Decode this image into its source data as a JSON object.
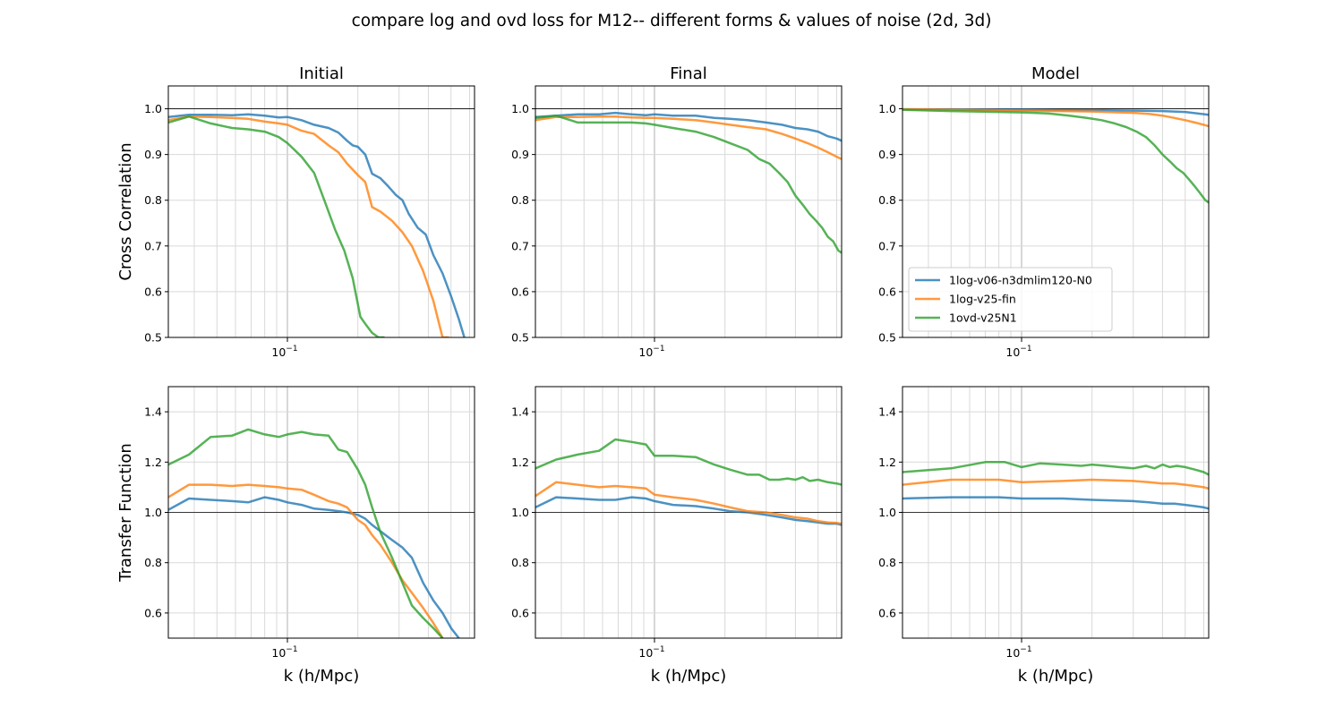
{
  "title": "compare log and ovd loss for M12-- different forms & values of noise (2d, 3d)",
  "colors": {
    "1log-v06-n3dmlim120-N0": "#1f77b4",
    "1log-v25-fin": "#ff7f0e",
    "1ovd-v25N1": "#2ca02c",
    "grid_major": "#b0b0b0",
    "grid_minor": "#d9d9d9",
    "refline": "#000000"
  },
  "chart_data": [
    {
      "type": "line",
      "panel": "Initial",
      "row": 0,
      "col": 0,
      "title": "Initial",
      "xlabel": "",
      "ylabel": "Cross Correlation",
      "xscale": "log",
      "xlim": [
        0.031,
        0.63
      ],
      "ylim": [
        0.5,
        1.05
      ],
      "yticks": [
        "0.5",
        "0.6",
        "0.7",
        "0.8",
        "0.9",
        "1.0"
      ],
      "xtick_label": "10^-1",
      "refline": 1.0,
      "series": [
        {
          "name": "1log-v06-n3dmlim120-N0",
          "x": [
            0.031,
            0.038,
            0.047,
            0.058,
            0.068,
            0.08,
            0.092,
            0.1,
            0.115,
            0.13,
            0.15,
            0.165,
            0.18,
            0.19,
            0.2,
            0.215,
            0.23,
            0.25,
            0.27,
            0.29,
            0.31,
            0.33,
            0.36,
            0.39,
            0.42,
            0.46,
            0.5,
            0.54,
            0.57
          ],
          "y": [
            0.982,
            0.987,
            0.987,
            0.986,
            0.988,
            0.985,
            0.981,
            0.982,
            0.975,
            0.965,
            0.958,
            0.948,
            0.93,
            0.92,
            0.917,
            0.9,
            0.858,
            0.848,
            0.83,
            0.812,
            0.8,
            0.77,
            0.74,
            0.725,
            0.68,
            0.64,
            0.59,
            0.54,
            0.5
          ]
        },
        {
          "name": "1log-v25-fin",
          "x": [
            0.031,
            0.038,
            0.047,
            0.058,
            0.068,
            0.08,
            0.092,
            0.1,
            0.115,
            0.13,
            0.15,
            0.165,
            0.18,
            0.2,
            0.215,
            0.23,
            0.25,
            0.28,
            0.31,
            0.34,
            0.38,
            0.42,
            0.46,
            0.49
          ],
          "y": [
            0.975,
            0.983,
            0.982,
            0.98,
            0.978,
            0.972,
            0.968,
            0.965,
            0.952,
            0.945,
            0.92,
            0.905,
            0.88,
            0.855,
            0.84,
            0.785,
            0.775,
            0.755,
            0.73,
            0.7,
            0.645,
            0.58,
            0.5,
            0.5
          ]
        },
        {
          "name": "1ovd-v25N1",
          "x": [
            0.031,
            0.038,
            0.047,
            0.058,
            0.068,
            0.08,
            0.092,
            0.1,
            0.115,
            0.13,
            0.145,
            0.16,
            0.175,
            0.19,
            0.205,
            0.215,
            0.23,
            0.245,
            0.26
          ],
          "y": [
            0.97,
            0.983,
            0.968,
            0.958,
            0.955,
            0.95,
            0.938,
            0.925,
            0.895,
            0.86,
            0.795,
            0.735,
            0.69,
            0.63,
            0.545,
            0.53,
            0.51,
            0.5,
            0.5
          ]
        }
      ]
    },
    {
      "type": "line",
      "panel": "Final",
      "row": 0,
      "col": 1,
      "title": "Final",
      "xlabel": "",
      "ylabel": "",
      "xscale": "log",
      "xlim": [
        0.031,
        0.63
      ],
      "ylim": [
        0.5,
        1.05
      ],
      "yticks": [
        "0.5",
        "0.6",
        "0.7",
        "0.8",
        "0.9",
        "1.0"
      ],
      "xtick_label": "10^-1",
      "refline": 1.0,
      "series": [
        {
          "name": "1log-v06-n3dmlim120-N0",
          "x": [
            0.031,
            0.038,
            0.047,
            0.058,
            0.068,
            0.08,
            0.092,
            0.1,
            0.12,
            0.15,
            0.18,
            0.21,
            0.25,
            0.3,
            0.35,
            0.4,
            0.45,
            0.5,
            0.55,
            0.6,
            0.63
          ],
          "y": [
            0.982,
            0.985,
            0.988,
            0.988,
            0.991,
            0.988,
            0.986,
            0.988,
            0.985,
            0.985,
            0.98,
            0.978,
            0.975,
            0.97,
            0.965,
            0.958,
            0.955,
            0.95,
            0.94,
            0.935,
            0.93
          ]
        },
        {
          "name": "1log-v25-fin",
          "x": [
            0.031,
            0.038,
            0.047,
            0.058,
            0.068,
            0.08,
            0.092,
            0.1,
            0.12,
            0.15,
            0.18,
            0.21,
            0.25,
            0.3,
            0.35,
            0.4,
            0.45,
            0.5,
            0.55,
            0.6,
            0.63
          ],
          "y": [
            0.975,
            0.982,
            0.982,
            0.983,
            0.983,
            0.981,
            0.98,
            0.98,
            0.978,
            0.975,
            0.97,
            0.965,
            0.96,
            0.955,
            0.945,
            0.935,
            0.925,
            0.915,
            0.905,
            0.895,
            0.89
          ]
        },
        {
          "name": "1ovd-v25N1",
          "x": [
            0.031,
            0.038,
            0.047,
            0.058,
            0.068,
            0.08,
            0.092,
            0.1,
            0.12,
            0.15,
            0.18,
            0.21,
            0.25,
            0.28,
            0.31,
            0.34,
            0.37,
            0.4,
            0.43,
            0.46,
            0.49,
            0.52,
            0.55,
            0.58,
            0.61,
            0.63
          ],
          "y": [
            0.98,
            0.985,
            0.97,
            0.97,
            0.97,
            0.97,
            0.968,
            0.965,
            0.958,
            0.95,
            0.938,
            0.925,
            0.91,
            0.89,
            0.88,
            0.86,
            0.84,
            0.81,
            0.79,
            0.77,
            0.755,
            0.74,
            0.72,
            0.71,
            0.69,
            0.685
          ]
        }
      ]
    },
    {
      "type": "line",
      "panel": "Model",
      "row": 0,
      "col": 2,
      "title": "Model",
      "xlabel": "",
      "ylabel": "",
      "xscale": "log",
      "xlim": [
        0.031,
        0.63
      ],
      "ylim": [
        0.5,
        1.05
      ],
      "yticks": [
        "0.5",
        "0.6",
        "0.7",
        "0.8",
        "0.9",
        "1.0"
      ],
      "xtick_label": "10^-1",
      "refline": 1.0,
      "legend": {
        "placement": "lower-left",
        "entries": [
          "1log-v06-n3dmlim120-N0",
          "1log-v25-fin",
          "1ovd-v25N1"
        ]
      },
      "series": [
        {
          "name": "1log-v06-n3dmlim120-N0",
          "x": [
            0.031,
            0.05,
            0.08,
            0.1,
            0.15,
            0.2,
            0.3,
            0.4,
            0.5,
            0.63
          ],
          "y": [
            0.999,
            0.999,
            0.998,
            0.998,
            0.997,
            0.997,
            0.996,
            0.995,
            0.993,
            0.987
          ]
        },
        {
          "name": "1log-v25-fin",
          "x": [
            0.031,
            0.05,
            0.08,
            0.1,
            0.15,
            0.2,
            0.3,
            0.35,
            0.4,
            0.45,
            0.5,
            0.55,
            0.6,
            0.63
          ],
          "y": [
            0.999,
            0.998,
            0.997,
            0.996,
            0.995,
            0.994,
            0.991,
            0.989,
            0.985,
            0.98,
            0.975,
            0.97,
            0.965,
            0.962
          ]
        },
        {
          "name": "1ovd-v25N1",
          "x": [
            0.031,
            0.05,
            0.08,
            0.1,
            0.13,
            0.16,
            0.19,
            0.22,
            0.25,
            0.28,
            0.31,
            0.34,
            0.37,
            0.4,
            0.43,
            0.46,
            0.49,
            0.52,
            0.55,
            0.58,
            0.61,
            0.63
          ],
          "y": [
            0.998,
            0.995,
            0.993,
            0.992,
            0.99,
            0.985,
            0.98,
            0.975,
            0.968,
            0.96,
            0.95,
            0.938,
            0.92,
            0.9,
            0.885,
            0.87,
            0.86,
            0.845,
            0.83,
            0.815,
            0.8,
            0.795
          ]
        }
      ]
    },
    {
      "type": "line",
      "panel": "Initial",
      "row": 1,
      "col": 0,
      "title": "",
      "xlabel": "k (h/Mpc)",
      "ylabel": "Transfer Function",
      "xscale": "log",
      "xlim": [
        0.031,
        0.63
      ],
      "ylim": [
        0.5,
        1.5
      ],
      "yticks": [
        "0.6",
        "0.8",
        "1.0",
        "1.2",
        "1.4"
      ],
      "xtick_label": "10^-1",
      "refline": 1.0,
      "series": [
        {
          "name": "1log-v06-n3dmlim120-N0",
          "x": [
            0.031,
            0.038,
            0.047,
            0.058,
            0.068,
            0.08,
            0.092,
            0.1,
            0.115,
            0.13,
            0.15,
            0.165,
            0.18,
            0.2,
            0.215,
            0.23,
            0.25,
            0.28,
            0.31,
            0.34,
            0.38,
            0.42,
            0.46,
            0.5,
            0.54
          ],
          "y": [
            1.01,
            1.055,
            1.05,
            1.045,
            1.04,
            1.06,
            1.05,
            1.04,
            1.03,
            1.015,
            1.01,
            1.005,
            1.0,
            0.99,
            0.975,
            0.95,
            0.925,
            0.89,
            0.86,
            0.82,
            0.72,
            0.65,
            0.6,
            0.54,
            0.5
          ]
        },
        {
          "name": "1log-v25-fin",
          "x": [
            0.031,
            0.038,
            0.047,
            0.058,
            0.068,
            0.08,
            0.092,
            0.1,
            0.115,
            0.13,
            0.15,
            0.165,
            0.18,
            0.2,
            0.215,
            0.23,
            0.25,
            0.28,
            0.31,
            0.34,
            0.38,
            0.42,
            0.46
          ],
          "y": [
            1.06,
            1.11,
            1.11,
            1.105,
            1.11,
            1.105,
            1.1,
            1.095,
            1.09,
            1.07,
            1.045,
            1.035,
            1.02,
            0.97,
            0.95,
            0.91,
            0.87,
            0.8,
            0.73,
            0.68,
            0.62,
            0.56,
            0.5
          ]
        },
        {
          "name": "1ovd-v25N1",
          "x": [
            0.031,
            0.038,
            0.047,
            0.058,
            0.068,
            0.08,
            0.092,
            0.1,
            0.115,
            0.13,
            0.15,
            0.165,
            0.18,
            0.2,
            0.215,
            0.23,
            0.25,
            0.28,
            0.31,
            0.34,
            0.38,
            0.42,
            0.46
          ],
          "y": [
            1.19,
            1.23,
            1.3,
            1.305,
            1.33,
            1.31,
            1.3,
            1.31,
            1.32,
            1.31,
            1.305,
            1.25,
            1.24,
            1.17,
            1.11,
            1.02,
            0.92,
            0.82,
            0.72,
            0.63,
            0.58,
            0.54,
            0.5
          ]
        }
      ]
    },
    {
      "type": "line",
      "panel": "Final",
      "row": 1,
      "col": 1,
      "title": "",
      "xlabel": "k (h/Mpc)",
      "ylabel": "",
      "xscale": "log",
      "xlim": [
        0.031,
        0.63
      ],
      "ylim": [
        0.5,
        1.5
      ],
      "yticks": [
        "0.6",
        "0.8",
        "1.0",
        "1.2",
        "1.4"
      ],
      "xtick_label": "10^-1",
      "refline": 1.0,
      "series": [
        {
          "name": "1log-v06-n3dmlim120-N0",
          "x": [
            0.031,
            0.038,
            0.047,
            0.058,
            0.068,
            0.08,
            0.092,
            0.1,
            0.12,
            0.15,
            0.18,
            0.21,
            0.25,
            0.3,
            0.35,
            0.4,
            0.45,
            0.5,
            0.55,
            0.6,
            0.63
          ],
          "y": [
            1.02,
            1.06,
            1.055,
            1.05,
            1.05,
            1.06,
            1.055,
            1.045,
            1.03,
            1.025,
            1.015,
            1.005,
            1.0,
            0.99,
            0.98,
            0.97,
            0.965,
            0.96,
            0.955,
            0.955,
            0.95
          ]
        },
        {
          "name": "1log-v25-fin",
          "x": [
            0.031,
            0.038,
            0.047,
            0.058,
            0.068,
            0.08,
            0.092,
            0.1,
            0.12,
            0.15,
            0.18,
            0.21,
            0.25,
            0.3,
            0.35,
            0.4,
            0.45,
            0.5,
            0.55,
            0.6,
            0.63
          ],
          "y": [
            1.065,
            1.12,
            1.11,
            1.1,
            1.105,
            1.1,
            1.095,
            1.07,
            1.06,
            1.05,
            1.035,
            1.02,
            1.005,
            1.0,
            0.99,
            0.98,
            0.975,
            0.965,
            0.96,
            0.958,
            0.955
          ]
        },
        {
          "name": "1ovd-v25N1",
          "x": [
            0.031,
            0.038,
            0.047,
            0.058,
            0.068,
            0.08,
            0.092,
            0.1,
            0.12,
            0.15,
            0.18,
            0.21,
            0.25,
            0.28,
            0.31,
            0.34,
            0.37,
            0.4,
            0.43,
            0.46,
            0.5,
            0.55,
            0.6,
            0.63
          ],
          "y": [
            1.175,
            1.21,
            1.23,
            1.245,
            1.29,
            1.28,
            1.27,
            1.225,
            1.225,
            1.22,
            1.19,
            1.17,
            1.15,
            1.15,
            1.13,
            1.13,
            1.135,
            1.13,
            1.14,
            1.125,
            1.13,
            1.12,
            1.115,
            1.11
          ]
        }
      ]
    },
    {
      "type": "line",
      "panel": "Model",
      "row": 1,
      "col": 2,
      "title": "",
      "xlabel": "k (h/Mpc)",
      "ylabel": "",
      "xscale": "log",
      "xlim": [
        0.031,
        0.63
      ],
      "ylim": [
        0.5,
        1.5
      ],
      "yticks": [
        "0.6",
        "0.8",
        "1.0",
        "1.2",
        "1.4"
      ],
      "xtick_label": "10^-1",
      "refline": 1.0,
      "series": [
        {
          "name": "1log-v06-n3dmlim120-N0",
          "x": [
            0.031,
            0.05,
            0.08,
            0.1,
            0.15,
            0.2,
            0.3,
            0.35,
            0.4,
            0.45,
            0.5,
            0.55,
            0.6,
            0.63
          ],
          "y": [
            1.055,
            1.06,
            1.06,
            1.055,
            1.055,
            1.05,
            1.045,
            1.04,
            1.035,
            1.035,
            1.03,
            1.025,
            1.02,
            1.015
          ]
        },
        {
          "name": "1log-v25-fin",
          "x": [
            0.031,
            0.05,
            0.08,
            0.1,
            0.15,
            0.2,
            0.3,
            0.35,
            0.4,
            0.45,
            0.5,
            0.55,
            0.6,
            0.63
          ],
          "y": [
            1.11,
            1.13,
            1.13,
            1.12,
            1.125,
            1.13,
            1.125,
            1.12,
            1.115,
            1.115,
            1.11,
            1.105,
            1.1,
            1.095
          ]
        },
        {
          "name": "1ovd-v25N1",
          "x": [
            0.031,
            0.05,
            0.07,
            0.085,
            0.1,
            0.12,
            0.15,
            0.18,
            0.2,
            0.23,
            0.26,
            0.3,
            0.34,
            0.37,
            0.4,
            0.43,
            0.46,
            0.5,
            0.55,
            0.6,
            0.63
          ],
          "y": [
            1.16,
            1.175,
            1.2,
            1.2,
            1.18,
            1.195,
            1.19,
            1.185,
            1.19,
            1.185,
            1.18,
            1.175,
            1.185,
            1.175,
            1.19,
            1.18,
            1.185,
            1.18,
            1.17,
            1.16,
            1.15
          ]
        }
      ]
    }
  ]
}
